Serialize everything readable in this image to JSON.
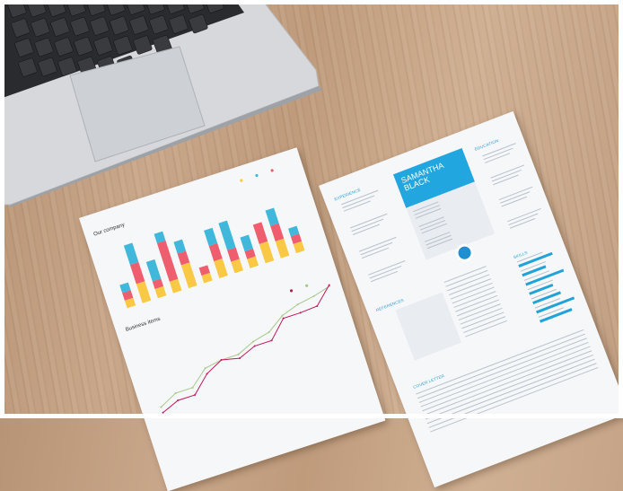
{
  "chart_sheet": {
    "title": "Our company",
    "subtitle": "Business items",
    "colors": {
      "yellow": "#f9c845",
      "red": "#ef5e6e",
      "blue": "#3fb8dc",
      "green": "#a8c98d",
      "magenta": "#c2185b"
    },
    "bar_stacks": [
      [
        10,
        10,
        10
      ],
      [
        25,
        25,
        25
      ],
      [
        12,
        10,
        25
      ],
      [
        15,
        50,
        12
      ],
      [
        30,
        15,
        15
      ],
      [
        10,
        10,
        0
      ],
      [
        22,
        20,
        20
      ],
      [
        15,
        15,
        35
      ],
      [
        12,
        10,
        18
      ],
      [
        25,
        25,
        0
      ],
      [
        22,
        20,
        20
      ],
      [
        12,
        10,
        10
      ]
    ],
    "line_green": [
      10,
      25,
      25,
      50,
      55,
      55,
      68,
      75,
      95,
      105,
      110,
      118
    ],
    "line_magenta": [
      0,
      12,
      12,
      40,
      55,
      48,
      60,
      60,
      90,
      90,
      92,
      120
    ]
  },
  "resume_sheet": {
    "name_line1": "SAMANTHA",
    "name_line2": "BLACK",
    "experience": "EXPERIENCE",
    "education": "EDUCATION",
    "references": "REFERENCES",
    "skills": "SKILLS",
    "cover_letter": "COVER LETTER",
    "skill_levels": [
      0.8,
      0.55,
      0.9,
      0.55,
      0.65,
      0.9,
      0.75
    ],
    "accent": "#22a6e0"
  }
}
